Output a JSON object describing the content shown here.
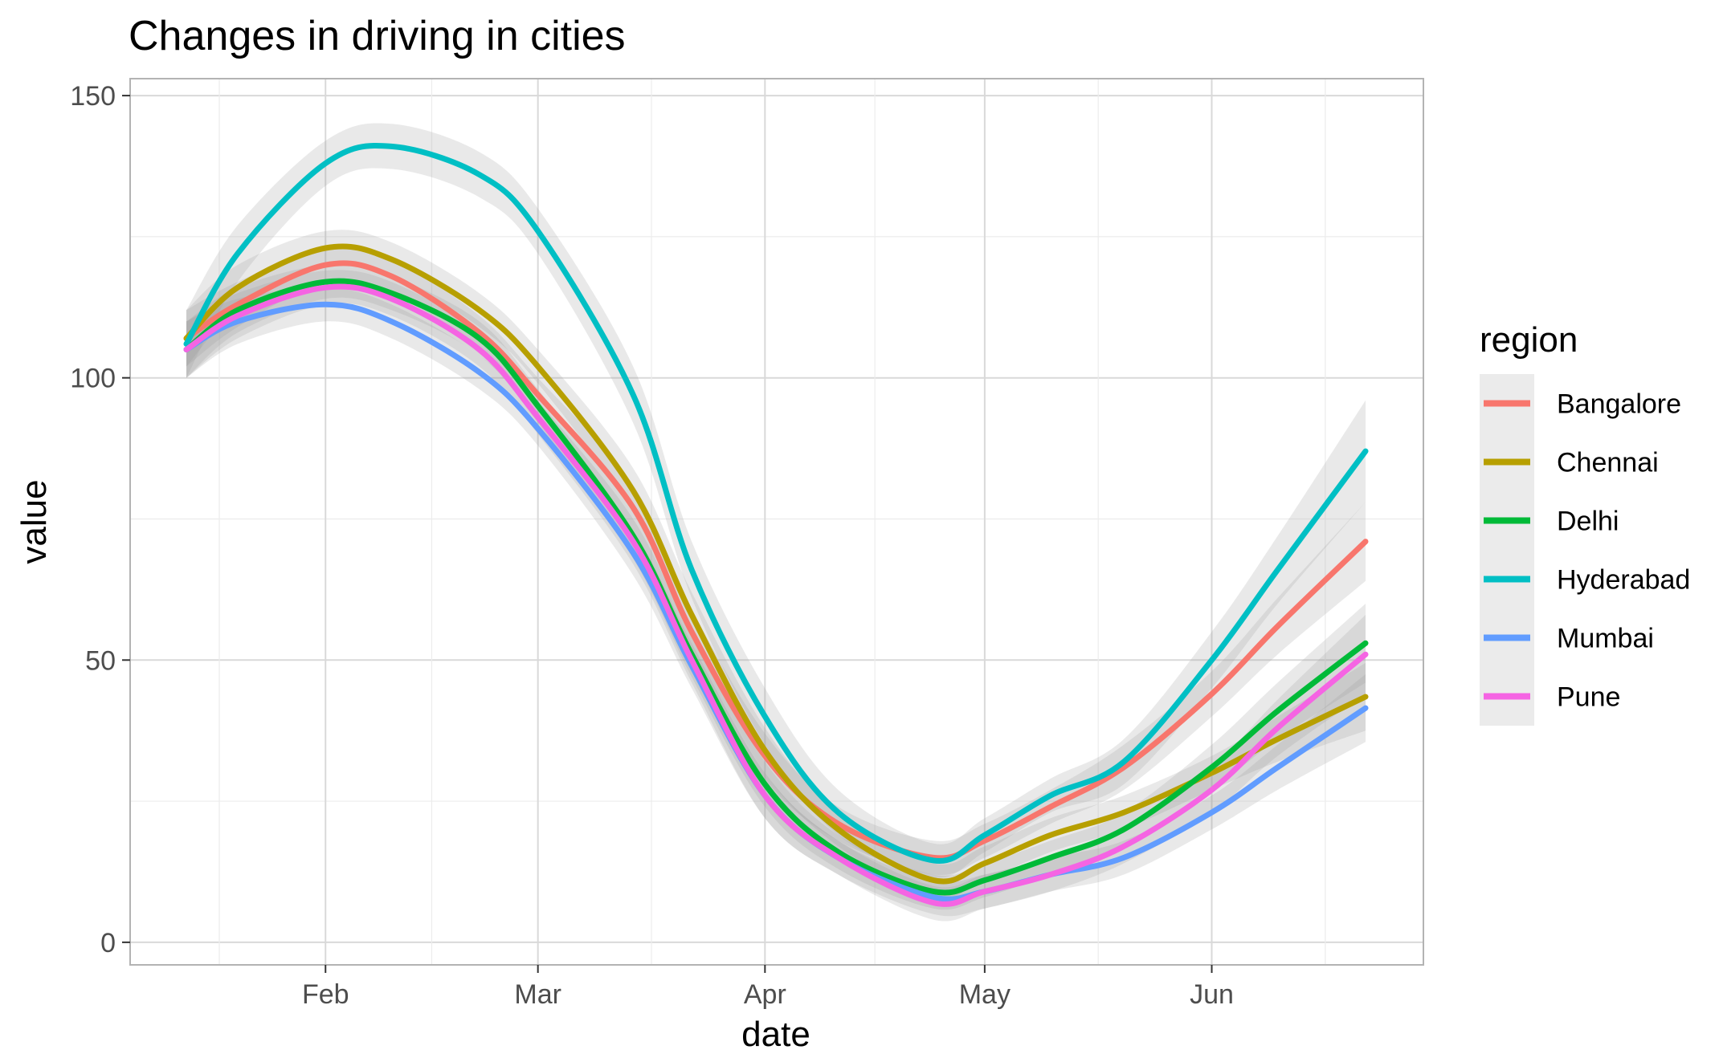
{
  "chart_data": {
    "type": "line",
    "title": "Changes in driving in cities",
    "xlabel": "date",
    "ylabel": "value",
    "legend_title": "region",
    "legend_position": "right",
    "grid": true,
    "x_range": [
      "2020-01-13",
      "2020-06-22"
    ],
    "ylim": [
      -4,
      153
    ],
    "y_ticks": [
      0,
      50,
      100,
      150
    ],
    "x_ticks": [
      {
        "label": "Feb",
        "date": "2020-02-01"
      },
      {
        "label": "Mar",
        "date": "2020-03-01"
      },
      {
        "label": "Apr",
        "date": "2020-04-01"
      },
      {
        "label": "May",
        "date": "2020-05-01"
      },
      {
        "label": "Jun",
        "date": "2020-06-01"
      }
    ],
    "x": [
      "2020-01-13",
      "2020-01-20",
      "2020-02-01",
      "2020-02-10",
      "2020-02-22",
      "2020-03-01",
      "2020-03-14",
      "2020-03-22",
      "2020-04-01",
      "2020-04-11",
      "2020-04-24",
      "2020-05-01",
      "2020-05-10",
      "2020-05-20",
      "2020-06-01",
      "2020-06-10",
      "2020-06-22"
    ],
    "series": [
      {
        "name": "Bangalore",
        "color": "#F8766D",
        "values": [
          107,
          113,
          120,
          118,
          108,
          97,
          77,
          55,
          33,
          21,
          15,
          18,
          24,
          31,
          44,
          56,
          71
        ],
        "band": [
          5,
          4,
          3,
          3,
          3,
          3,
          4,
          4,
          4,
          3,
          3,
          3,
          3,
          4,
          4,
          5,
          7
        ]
      },
      {
        "name": "Chennai",
        "color": "#B79F00",
        "values": [
          107,
          116,
          123,
          121,
          112,
          102,
          80,
          58,
          34,
          20,
          11,
          14,
          19,
          23,
          30,
          36,
          43.5
        ],
        "band": [
          5,
          4,
          3,
          3,
          3,
          3,
          4,
          4,
          4,
          3,
          3,
          3,
          3,
          3,
          3,
          4,
          6
        ]
      },
      {
        "name": "Delhi",
        "color": "#00BA38",
        "values": [
          105,
          112,
          117,
          115,
          107,
          95,
          72,
          51,
          28,
          16,
          9,
          11,
          15,
          20,
          31,
          41,
          53
        ],
        "band": [
          5,
          4,
          3,
          3,
          3,
          3,
          4,
          4,
          4,
          3,
          3,
          3,
          3,
          3,
          4,
          5,
          7
        ]
      },
      {
        "name": "Hyderabad",
        "color": "#00BFC4",
        "values": [
          106,
          122,
          138,
          141,
          136,
          126,
          97,
          66,
          40,
          23,
          14.5,
          19,
          26,
          32,
          50,
          66,
          87
        ],
        "band": [
          6,
          5,
          4,
          4,
          4,
          4,
          5,
          5,
          5,
          4,
          3,
          3,
          3,
          4,
          5,
          6,
          9
        ]
      },
      {
        "name": "Mumbai",
        "color": "#619CFF",
        "values": [
          105,
          110,
          113,
          110,
          101,
          91,
          69,
          49,
          26,
          15,
          8,
          9,
          12,
          15,
          23,
          31,
          41.5
        ],
        "band": [
          5,
          4,
          3,
          3,
          3,
          3,
          4,
          4,
          4,
          3,
          3,
          3,
          3,
          3,
          3,
          4,
          6
        ]
      },
      {
        "name": "Pune",
        "color": "#F564E3",
        "values": [
          105,
          111,
          116,
          114,
          105,
          93,
          71,
          50,
          26,
          15,
          7,
          9,
          12,
          17,
          27,
          38,
          51
        ],
        "band": [
          5,
          4,
          3,
          3,
          3,
          3,
          4,
          4,
          4,
          3,
          3,
          3,
          3,
          3,
          4,
          5,
          7
        ]
      }
    ]
  }
}
